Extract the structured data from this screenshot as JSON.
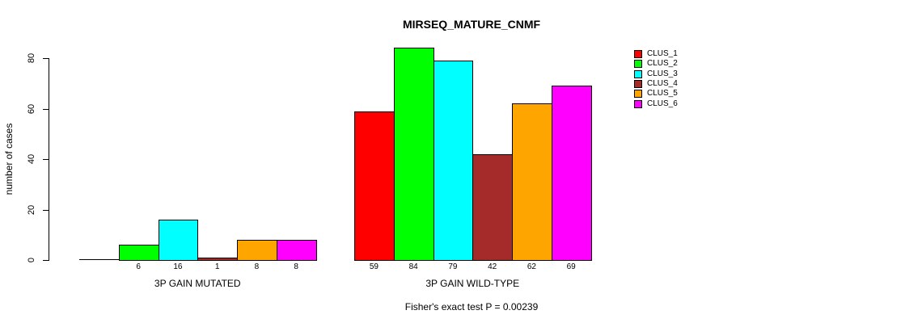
{
  "title": "MIRSEQ_MATURE_CNMF",
  "footer": "Fisher's exact test P = 0.00239",
  "chart_data": {
    "type": "bar",
    "title": "MIRSEQ_MATURE_CNMF",
    "xlabel": "",
    "ylabel": "number of cases",
    "ylim": [
      0,
      80
    ],
    "yticks": [
      0,
      20,
      40,
      60,
      80
    ],
    "grid": false,
    "legend_position": "top-right",
    "categories": [
      "3P GAIN MUTATED",
      "3P GAIN WILD-TYPE"
    ],
    "series": [
      {
        "name": "CLUS_1",
        "color": "#FF0000",
        "values": [
          0,
          59
        ]
      },
      {
        "name": "CLUS_2",
        "color": "#00FF00",
        "values": [
          6,
          84
        ]
      },
      {
        "name": "CLUS_3",
        "color": "#00FFFF",
        "values": [
          16,
          79
        ]
      },
      {
        "name": "CLUS_4",
        "color": "#A52A2A",
        "values": [
          1,
          42
        ]
      },
      {
        "name": "CLUS_5",
        "color": "#FFA500",
        "values": [
          8,
          62
        ]
      },
      {
        "name": "CLUS_6",
        "color": "#FF00FF",
        "values": [
          8,
          69
        ]
      }
    ],
    "bar_labels": [
      [
        "",
        "6",
        "16",
        "1",
        "8",
        "8"
      ],
      [
        "59",
        "84",
        "79",
        "42",
        "62",
        "69"
      ]
    ],
    "annotation": "Fisher's exact test P = 0.00239"
  }
}
